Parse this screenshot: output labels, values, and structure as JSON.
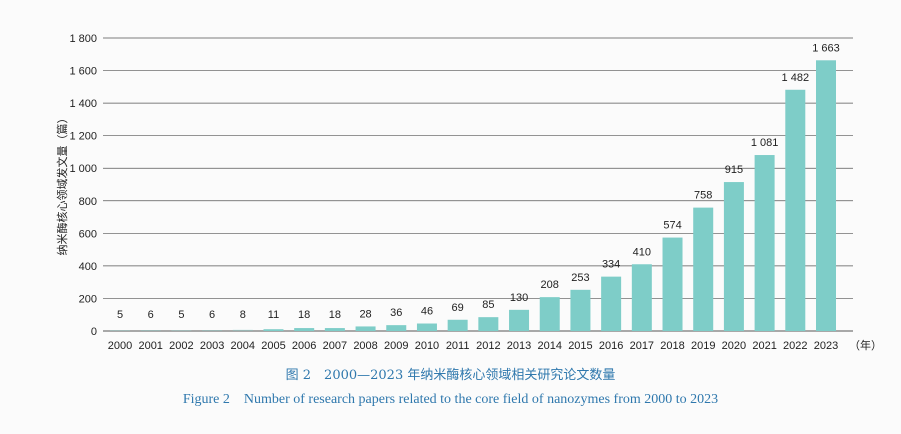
{
  "chart_data": {
    "type": "bar",
    "categories": [
      "2000",
      "2001",
      "2002",
      "2003",
      "2004",
      "2005",
      "2006",
      "2007",
      "2008",
      "2009",
      "2010",
      "2011",
      "2012",
      "2013",
      "2014",
      "2015",
      "2016",
      "2017",
      "2018",
      "2019",
      "2020",
      "2021",
      "2022",
      "2023"
    ],
    "values": [
      5,
      6,
      5,
      6,
      8,
      11,
      18,
      18,
      28,
      36,
      46,
      69,
      85,
      130,
      208,
      253,
      334,
      410,
      574,
      758,
      915,
      1081,
      1482,
      1663
    ],
    "value_labels": [
      "5",
      "6",
      "5",
      "6",
      "8",
      "11",
      "18",
      "18",
      "28",
      "36",
      "46",
      "69",
      "85",
      "130",
      "208",
      "253",
      "334",
      "410",
      "574",
      "758",
      "915",
      "1 081",
      "1 482",
      "1 663"
    ],
    "ylabel": "纳米酶核心领域发文量（篇）",
    "xunit": "（年）",
    "ylim": [
      0,
      1800
    ],
    "yticks": [
      0,
      200,
      400,
      600,
      800,
      1000,
      1200,
      1400,
      1600,
      1800
    ],
    "ytick_labels": [
      "0",
      "200",
      "400",
      "600",
      "800",
      "1 000",
      "1 200",
      "1 400",
      "1 600",
      "1 800"
    ],
    "grid": "horizontal",
    "bar_color": "#7ecdc8",
    "grid_color": "#555555"
  },
  "caption": {
    "chinese": "图 2　2000—2023 年纳米酶核心领域相关研究论文数量",
    "english": "Figure 2　Number of research papers related to the core field of nanozymes from 2000 to 2023",
    "color": "#2f78ad"
  }
}
